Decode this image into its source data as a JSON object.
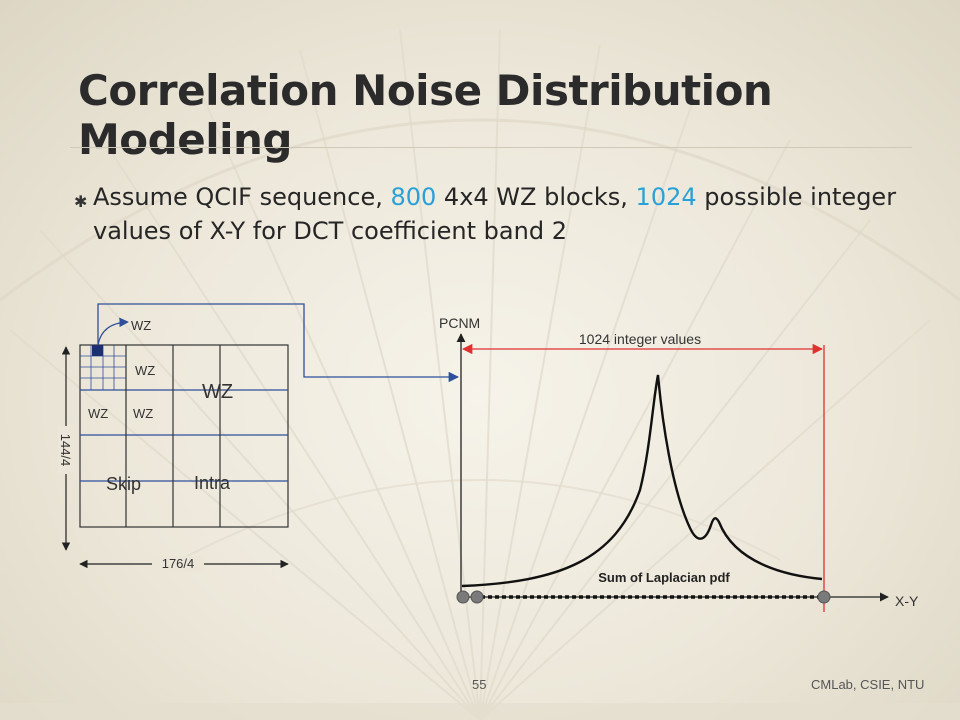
{
  "slide": {
    "title": "Correlation Noise Distribution Modeling",
    "bullet": {
      "t1": "Assume QCIF sequence, ",
      "n1": "800",
      "t2": " 4x4 WZ blocks, ",
      "n2": "1024",
      "t3": " possible integer values of X-Y for DCT coefficient band 2"
    },
    "accent_color": "#2aa0d8",
    "bullet_icon": "asterisk-icon"
  },
  "left_diagram": {
    "wz_top": "WZ",
    "wz_a": "WZ",
    "wz_large": "WZ",
    "wz_b": "WZ",
    "wz_c": "WZ",
    "skip": "Skip",
    "intra": "Intra",
    "height_label": "144/4",
    "width_label": "176/4"
  },
  "right_diagram": {
    "y_label": "PCNM",
    "x_label": "X-Y",
    "range_label": "1024 integer values",
    "curve_label": "Sum of Laplacian pdf",
    "range_color": "#e03030"
  },
  "footer": {
    "page_number": "55",
    "credit": "CMLab, CSIE, NTU"
  }
}
